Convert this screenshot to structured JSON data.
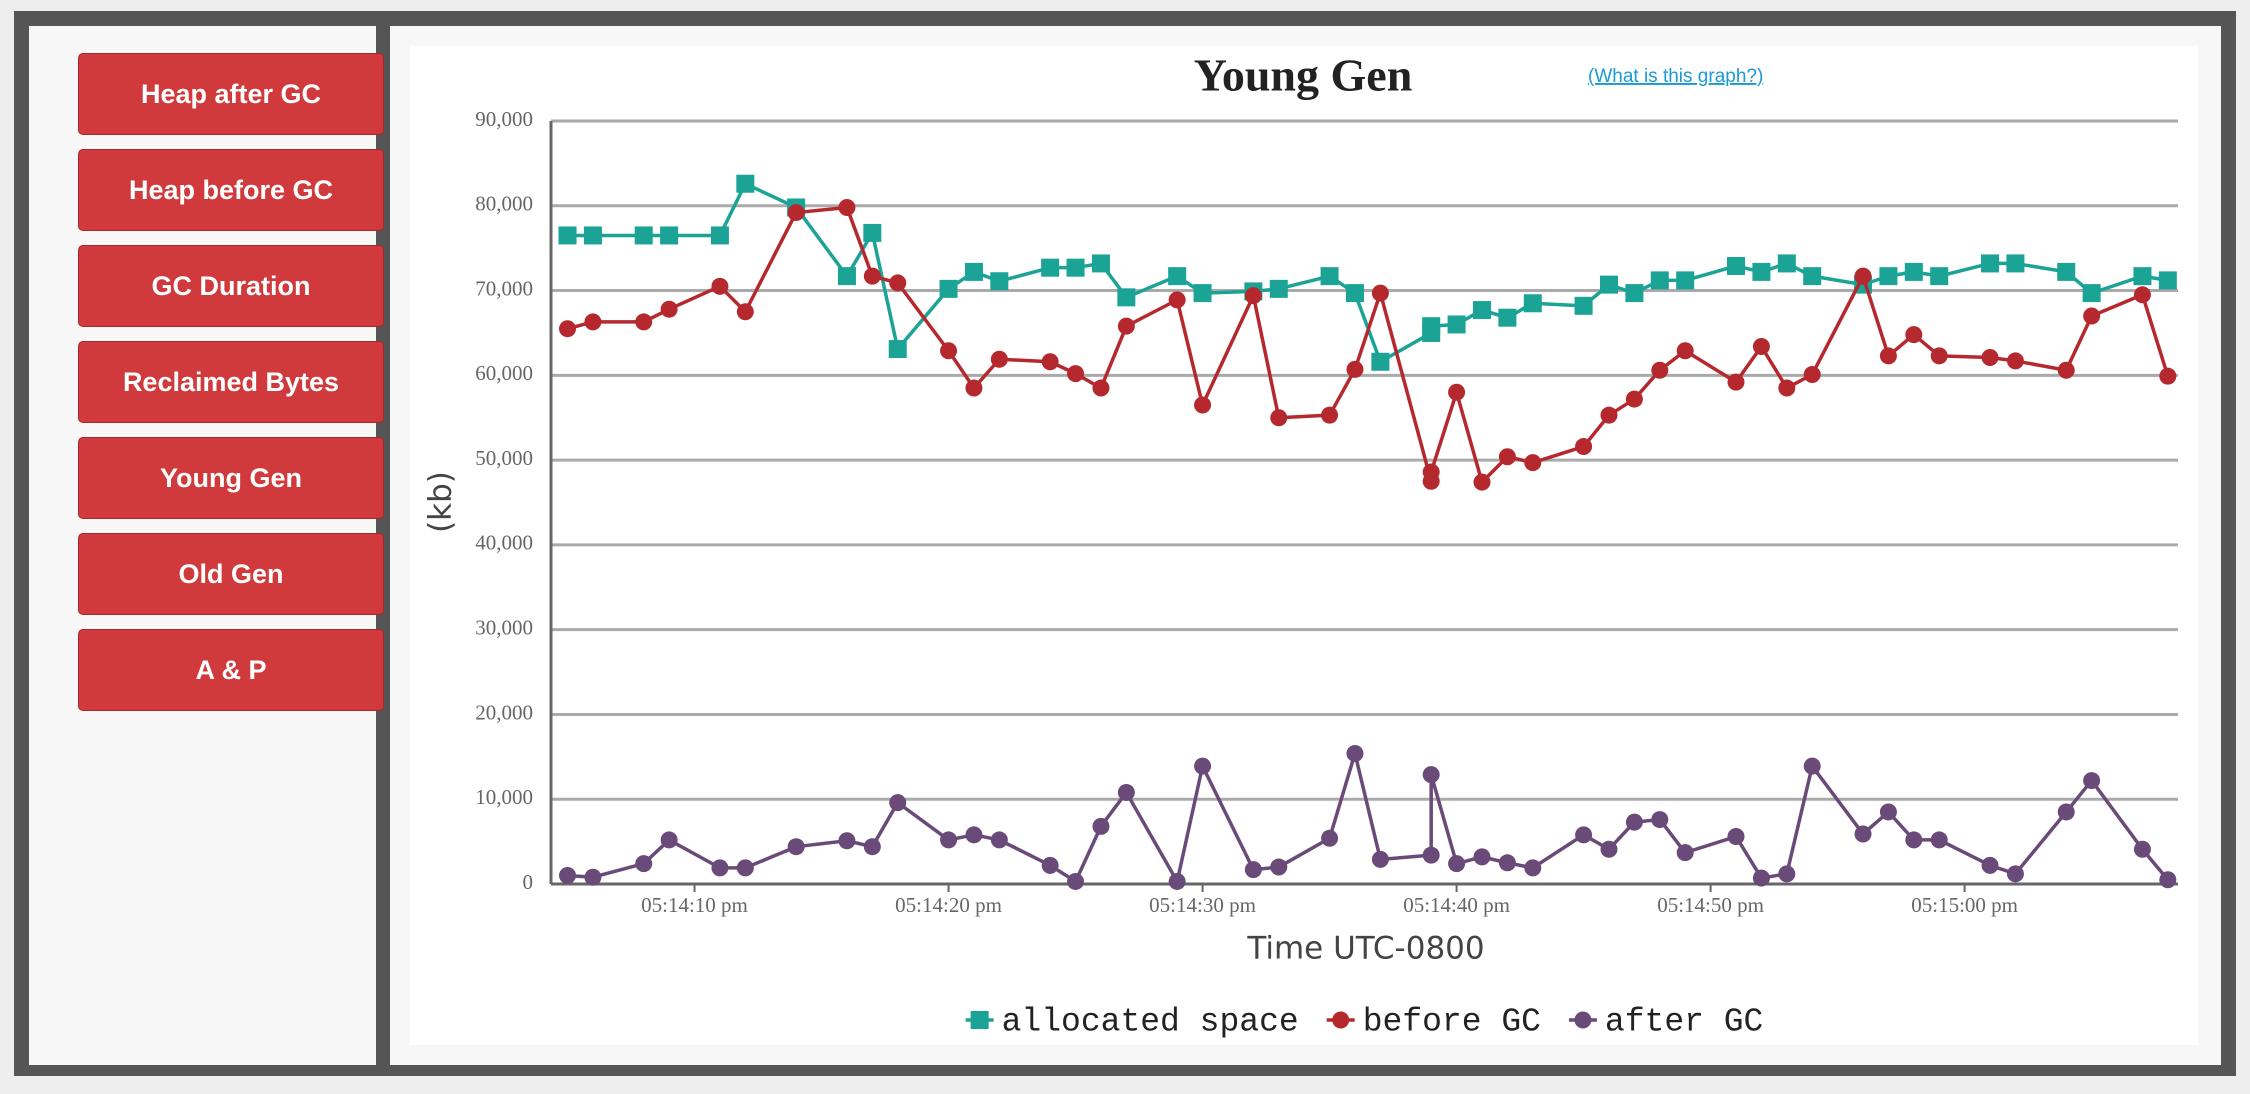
{
  "sidebar": {
    "buttons": [
      "Heap after GC",
      "Heap before GC",
      "GC Duration",
      "Reclaimed Bytes",
      "Young Gen",
      "Old Gen",
      "A & P"
    ]
  },
  "help_link": "(What is this graph?)",
  "chart_data": {
    "type": "line",
    "title": "Young Gen",
    "x_label": "Time UTC-0800",
    "y_label": "(kb)",
    "x": [
      5,
      6,
      8,
      9,
      11,
      12,
      14,
      16,
      17,
      18,
      20,
      21,
      22,
      24,
      25,
      26,
      27,
      29,
      30,
      32,
      33,
      35,
      36,
      37,
      39,
      39,
      40,
      41,
      42,
      43,
      45,
      46,
      47,
      48,
      49,
      51,
      52,
      53,
      54,
      56,
      57,
      58,
      59,
      61,
      62,
      64,
      65,
      67,
      68
    ],
    "xlim": [
      4.35,
      68.4
    ],
    "xticks": [
      {
        "value": 10,
        "label": "05:14:10 pm"
      },
      {
        "value": 20,
        "label": "05:14:20 pm"
      },
      {
        "value": 30,
        "label": "05:14:30 pm"
      },
      {
        "value": 40,
        "label": "05:14:40 pm"
      },
      {
        "value": 50,
        "label": "05:14:50 pm"
      },
      {
        "value": 60,
        "label": "05:15:00 pm"
      }
    ],
    "ylim": [
      0,
      90000
    ],
    "yticks": [
      0,
      {
        "value": 10000,
        "label": "10,000"
      },
      {
        "value": 20000,
        "label": "20,000"
      },
      {
        "value": 30000,
        "label": "30,000"
      },
      {
        "value": 40000,
        "label": "40,000"
      },
      {
        "value": 50000,
        "label": "50,000"
      },
      {
        "value": 60000,
        "label": "60,000"
      },
      {
        "value": 70000,
        "label": "70,000"
      },
      {
        "value": 80000,
        "label": "80,000"
      },
      {
        "value": 90000,
        "label": "90,000"
      }
    ],
    "grid": true,
    "legend": "bottom",
    "series": [
      {
        "name": "allocated space",
        "color": "#1ba396",
        "marker": "square",
        "values": [
          76500,
          76500,
          76500,
          76500,
          76500,
          82600,
          79800,
          71700,
          76800,
          63100,
          70200,
          72200,
          71100,
          72700,
          72700,
          73200,
          69200,
          71700,
          69700,
          69900,
          70200,
          71700,
          69700,
          61600,
          65000,
          65800,
          66000,
          67700,
          66800,
          68500,
          68200,
          70700,
          69700,
          71200,
          71200,
          72900,
          72200,
          73200,
          71700,
          70700,
          71700,
          72200,
          71700,
          73200,
          73200,
          72200,
          69700,
          71700,
          71200
        ]
      },
      {
        "name": "before GC",
        "color": "#b5292e",
        "marker": "circle",
        "values": [
          65500,
          66300,
          66300,
          67800,
          70500,
          67500,
          79200,
          79800,
          71700,
          70900,
          62900,
          58500,
          61900,
          61600,
          60200,
          58500,
          65800,
          68900,
          56500,
          69400,
          55000,
          55300,
          60700,
          69700,
          47500,
          48600,
          58000,
          47400,
          50400,
          49700,
          51600,
          55300,
          57200,
          60600,
          62900,
          59200,
          63400,
          58500,
          60100,
          71700,
          62300,
          64800,
          62300,
          62100,
          61700,
          60600,
          67000,
          69500,
          59900
        ]
      },
      {
        "name": "after GC",
        "color": "#6a4a78",
        "marker": "circle",
        "values": [
          1000,
          800,
          2400,
          5200,
          1900,
          1900,
          4400,
          5100,
          4400,
          9600,
          5200,
          5800,
          5200,
          2200,
          300,
          6800,
          10800,
          300,
          13900,
          1700,
          2000,
          5400,
          15400,
          2900,
          3400,
          12900,
          2400,
          3200,
          2500,
          1900,
          5800,
          4100,
          7300,
          7600,
          3700,
          5600,
          700,
          1200,
          13900,
          5900,
          8500,
          5200,
          5200,
          2200,
          1200,
          8500,
          12200,
          4100,
          500
        ]
      }
    ]
  }
}
